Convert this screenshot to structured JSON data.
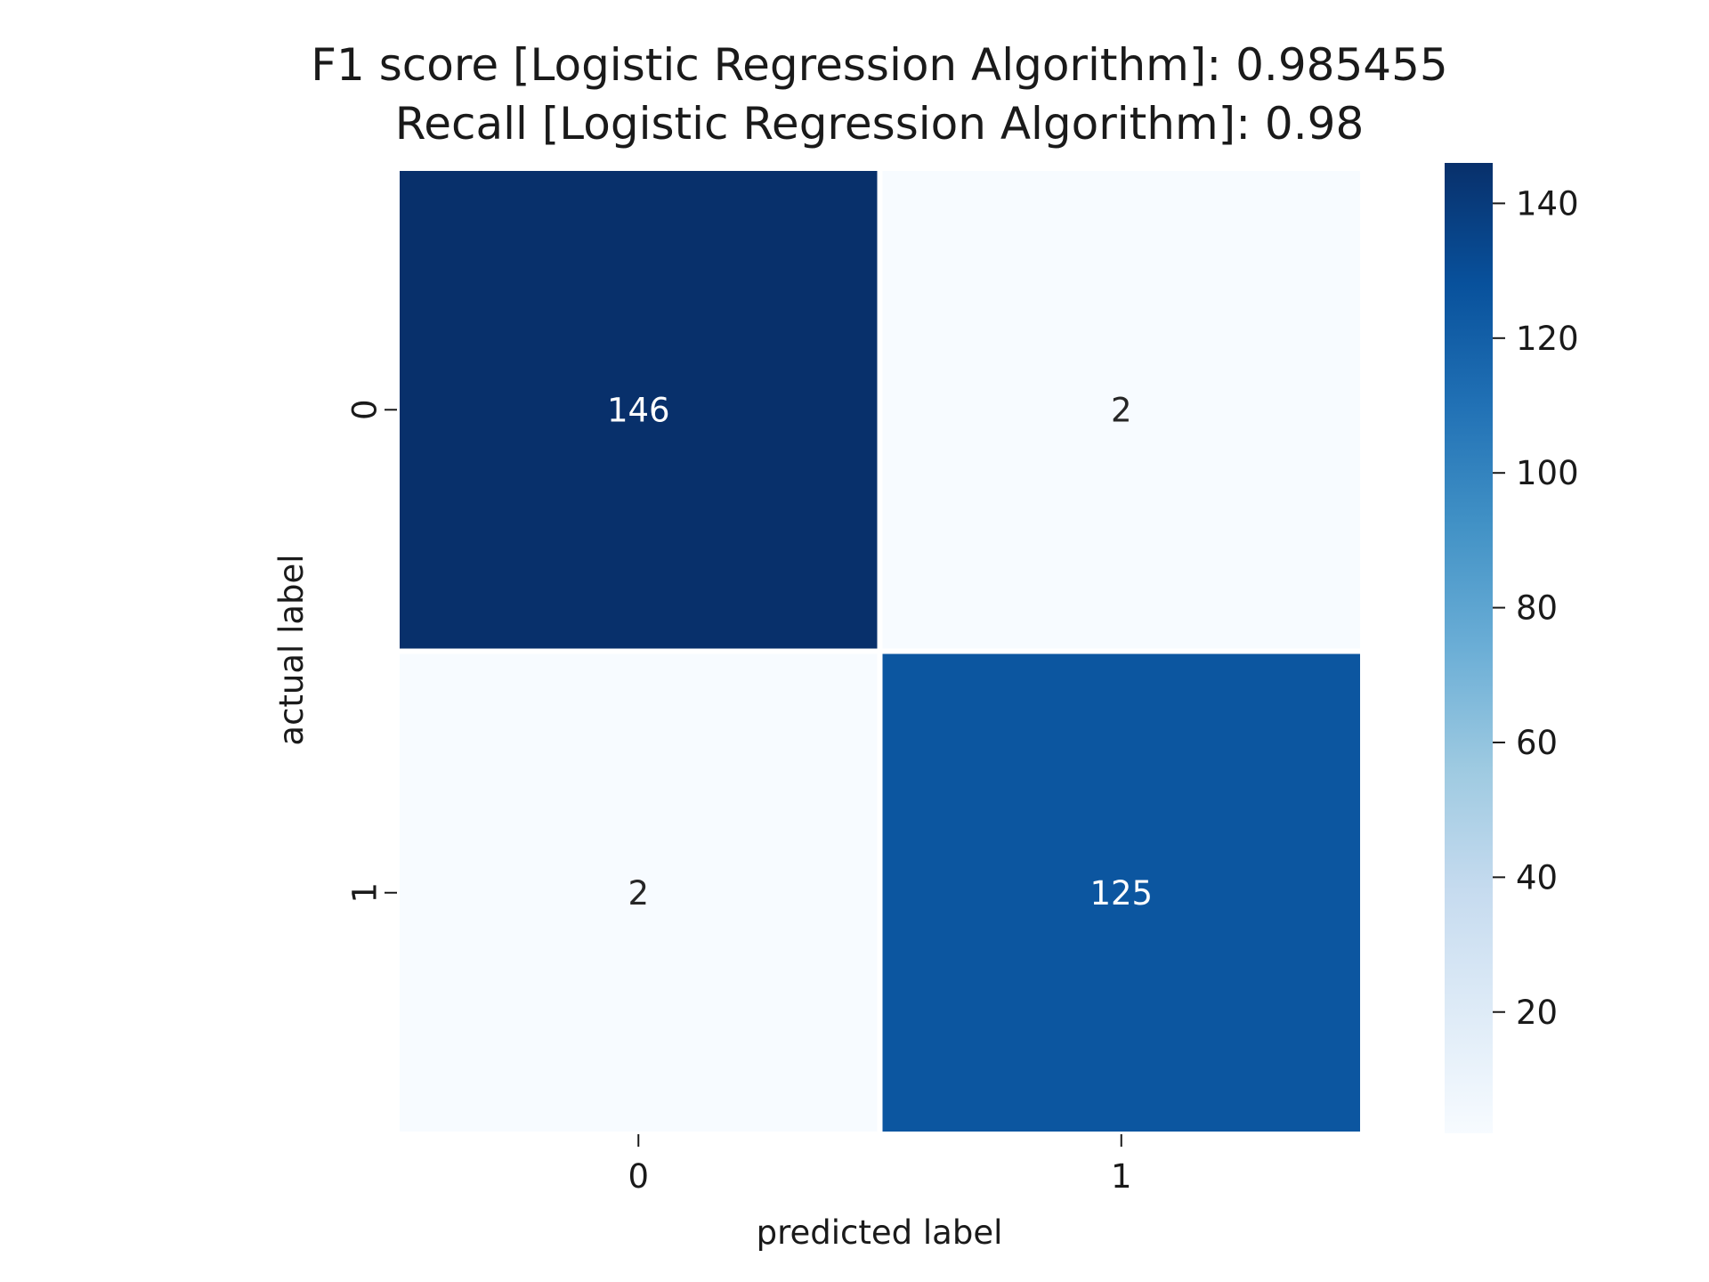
{
  "chart_data": {
    "type": "heatmap",
    "title_lines": [
      "F1 score [Logistic Regression Algorithm]:  0.985455",
      "Recall [Logistic Regression Algorithm]: 0.98"
    ],
    "xlabel": "predicted label",
    "ylabel": "actual label",
    "x_categories": [
      "0",
      "1"
    ],
    "y_categories": [
      "0",
      "1"
    ],
    "values": [
      [
        146,
        2
      ],
      [
        2,
        125
      ]
    ],
    "colormap": "Blues",
    "colorbar": {
      "range": [
        2,
        146
      ],
      "ticks": [
        20,
        40,
        60,
        80,
        100,
        120,
        140
      ]
    },
    "light_text_color": "#ffffff",
    "dark_text_color": "#262626"
  }
}
